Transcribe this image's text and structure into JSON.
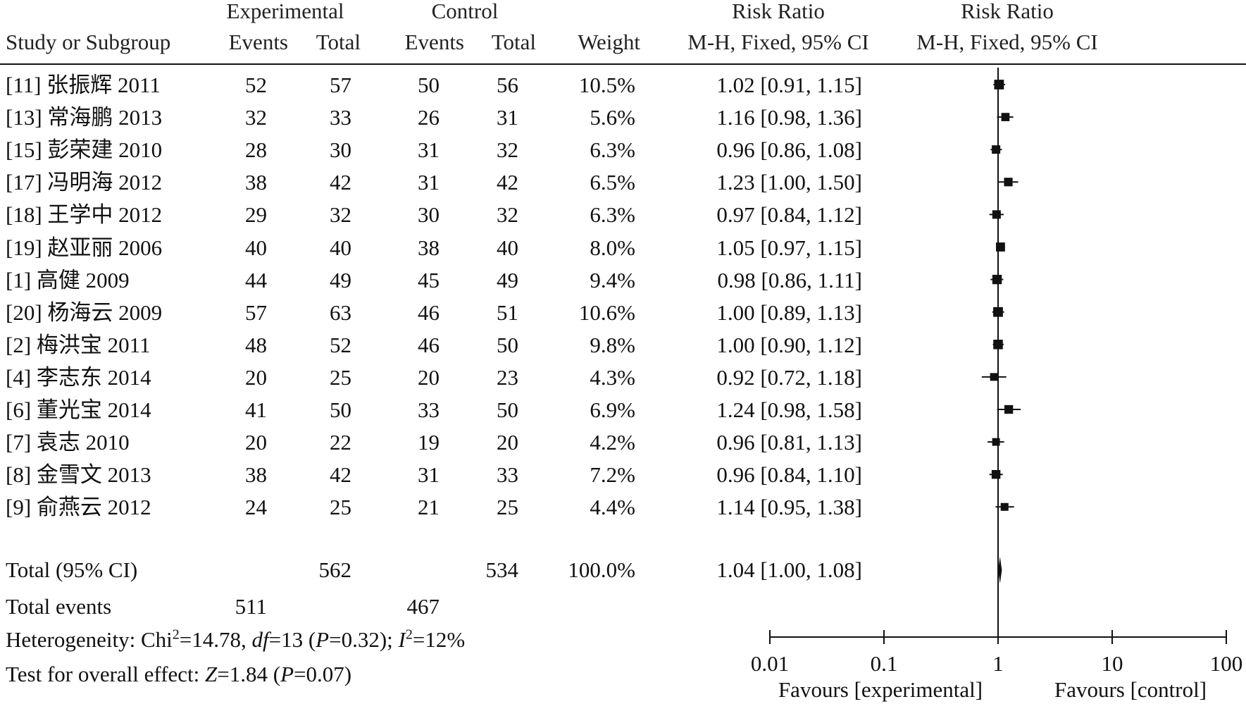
{
  "header": {
    "group_experimental": "Experimental",
    "group_control": "Control",
    "rr_title": "Risk Ratio",
    "rr_plot_title": "Risk Ratio",
    "col_study": "Study or Subgroup",
    "col_exp_events": "Events",
    "col_exp_total": "Total",
    "col_ctl_events": "Events",
    "col_ctl_total": "Total",
    "col_weight": "Weight",
    "col_rr": "M-H, Fixed, 95% CI",
    "col_rr_plot": "M-H, Fixed, 95% CI"
  },
  "studies": [
    {
      "name": "[11] 张振辉 2011",
      "exp_events": "52",
      "exp_total": "57",
      "ctl_events": "50",
      "ctl_total": "56",
      "weight": "10.5%",
      "ci_text": "1.02 [0.91, 1.15]"
    },
    {
      "name": "[13] 常海鹏 2013",
      "exp_events": "32",
      "exp_total": "33",
      "ctl_events": "26",
      "ctl_total": "31",
      "weight": "5.6%",
      "ci_text": "1.16 [0.98, 1.36]"
    },
    {
      "name": "[15] 彭荣建 2010",
      "exp_events": "28",
      "exp_total": "30",
      "ctl_events": "31",
      "ctl_total": "32",
      "weight": "6.3%",
      "ci_text": "0.96 [0.86, 1.08]"
    },
    {
      "name": "[17] 冯明海 2012",
      "exp_events": "38",
      "exp_total": "42",
      "ctl_events": "31",
      "ctl_total": "42",
      "weight": "6.5%",
      "ci_text": "1.23 [1.00, 1.50]"
    },
    {
      "name": "[18] 王学中 2012",
      "exp_events": "29",
      "exp_total": "32",
      "ctl_events": "30",
      "ctl_total": "32",
      "weight": "6.3%",
      "ci_text": "0.97 [0.84, 1.12]"
    },
    {
      "name": "[19] 赵亚丽 2006",
      "exp_events": "40",
      "exp_total": "40",
      "ctl_events": "38",
      "ctl_total": "40",
      "weight": "8.0%",
      "ci_text": "1.05 [0.97, 1.15]"
    },
    {
      "name": "[1] 高健 2009",
      "exp_events": "44",
      "exp_total": "49",
      "ctl_events": "45",
      "ctl_total": "49",
      "weight": "9.4%",
      "ci_text": "0.98 [0.86, 1.11]"
    },
    {
      "name": "[20] 杨海云 2009",
      "exp_events": "57",
      "exp_total": "63",
      "ctl_events": "46",
      "ctl_total": "51",
      "weight": "10.6%",
      "ci_text": "1.00 [0.89, 1.13]"
    },
    {
      "name": "[2] 梅洪宝 2011",
      "exp_events": "48",
      "exp_total": "52",
      "ctl_events": "46",
      "ctl_total": "50",
      "weight": "9.8%",
      "ci_text": "1.00 [0.90, 1.12]"
    },
    {
      "name": "[4] 李志东 2014",
      "exp_events": "20",
      "exp_total": "25",
      "ctl_events": "20",
      "ctl_total": "23",
      "weight": "4.3%",
      "ci_text": "0.92 [0.72, 1.18]"
    },
    {
      "name": "[6] 董光宝 2014",
      "exp_events": "41",
      "exp_total": "50",
      "ctl_events": "33",
      "ctl_total": "50",
      "weight": "6.9%",
      "ci_text": "1.24 [0.98, 1.58]"
    },
    {
      "name": "[7] 袁志 2010",
      "exp_events": "20",
      "exp_total": "22",
      "ctl_events": "19",
      "ctl_total": "20",
      "weight": "4.2%",
      "ci_text": "0.96 [0.81, 1.13]"
    },
    {
      "name": "[8] 金雪文 2013",
      "exp_events": "38",
      "exp_total": "42",
      "ctl_events": "31",
      "ctl_total": "33",
      "weight": "7.2%",
      "ci_text": "0.96 [0.84, 1.10]"
    },
    {
      "name": "[9] 俞燕云 2012",
      "exp_events": "24",
      "exp_total": "25",
      "ctl_events": "21",
      "ctl_total": "25",
      "weight": "4.4%",
      "ci_text": "1.14 [0.95, 1.38]"
    }
  ],
  "total": {
    "label": "Total (95% CI)",
    "exp_total": "562",
    "ctl_total": "534",
    "weight": "100.0%",
    "ci_text": "1.04 [1.00, 1.08]"
  },
  "total_events": {
    "label": "Total events",
    "exp_events": "511",
    "ctl_events": "467"
  },
  "heterogeneity": {
    "prefix": "Heterogeneity: Chi",
    "chi_sup": "2",
    "chi_value": "=14.78, ",
    "df_label": "df",
    "df_value": "=13 (",
    "p_label": "P",
    "p_value": "=0.32); ",
    "i_label": "I",
    "i_sup": "2",
    "i_value": "=12%"
  },
  "overall_effect": {
    "prefix": "Test for overall effect: ",
    "z_label": "Z",
    "z_value": "=1.84 (",
    "p_label": "P",
    "p_value": "=0.07)"
  },
  "axis": {
    "tick_labels": [
      "0.01",
      "0.1",
      "1",
      "10",
      "100"
    ],
    "favours_left": "Favours [experimental]",
    "favours_right": "Favours [control]"
  },
  "chart_data": {
    "type": "forest",
    "scale": "log",
    "xlim": [
      0.01,
      100
    ],
    "ticks": [
      0.01,
      0.1,
      1,
      10,
      100
    ],
    "null_line": 1,
    "studies": [
      {
        "rr": 1.02,
        "lo": 0.91,
        "hi": 1.15,
        "weight": 10.5
      },
      {
        "rr": 1.16,
        "lo": 0.98,
        "hi": 1.36,
        "weight": 5.6
      },
      {
        "rr": 0.96,
        "lo": 0.86,
        "hi": 1.08,
        "weight": 6.3
      },
      {
        "rr": 1.23,
        "lo": 1.0,
        "hi": 1.5,
        "weight": 6.5
      },
      {
        "rr": 0.97,
        "lo": 0.84,
        "hi": 1.12,
        "weight": 6.3
      },
      {
        "rr": 1.05,
        "lo": 0.97,
        "hi": 1.15,
        "weight": 8.0
      },
      {
        "rr": 0.98,
        "lo": 0.86,
        "hi": 1.11,
        "weight": 9.4
      },
      {
        "rr": 1.0,
        "lo": 0.89,
        "hi": 1.13,
        "weight": 10.6
      },
      {
        "rr": 1.0,
        "lo": 0.9,
        "hi": 1.12,
        "weight": 9.8
      },
      {
        "rr": 0.92,
        "lo": 0.72,
        "hi": 1.18,
        "weight": 4.3
      },
      {
        "rr": 1.24,
        "lo": 0.98,
        "hi": 1.58,
        "weight": 6.9
      },
      {
        "rr": 0.96,
        "lo": 0.81,
        "hi": 1.13,
        "weight": 4.2
      },
      {
        "rr": 0.96,
        "lo": 0.84,
        "hi": 1.1,
        "weight": 7.2
      },
      {
        "rr": 1.14,
        "lo": 0.95,
        "hi": 1.38,
        "weight": 4.4
      }
    ],
    "pooled": {
      "rr": 1.04,
      "lo": 1.0,
      "hi": 1.08
    }
  }
}
